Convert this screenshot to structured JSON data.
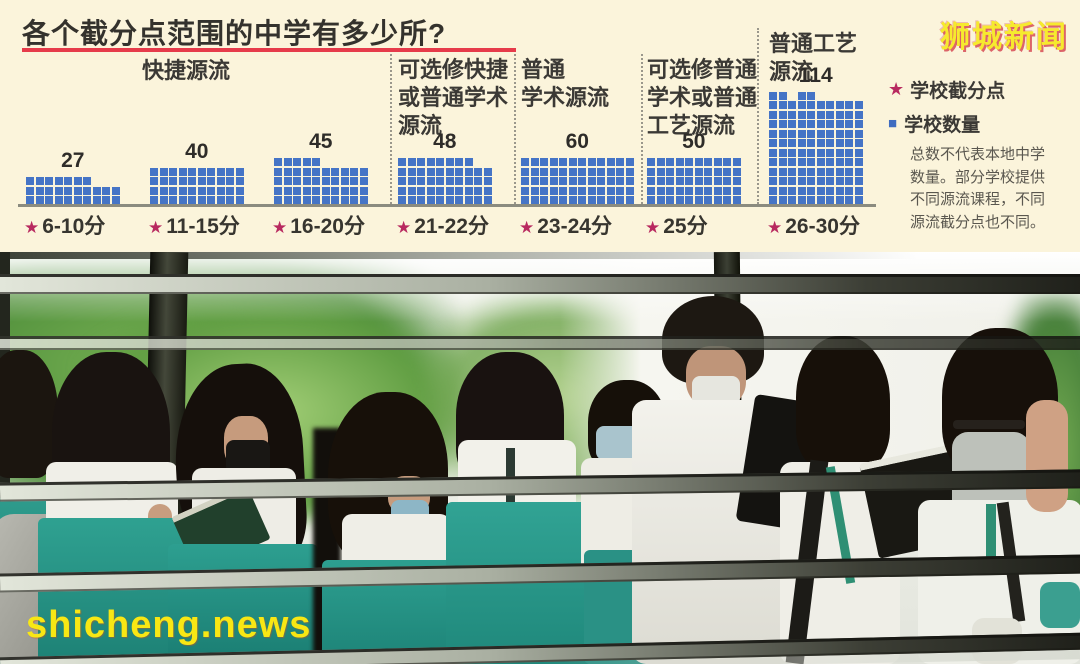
{
  "header": {
    "title": "各个截分点范围的中学有多少所?"
  },
  "logo": {
    "text": "狮城新闻"
  },
  "watermark": {
    "text": "shicheng.news"
  },
  "legend": {
    "cutoff_label": "学校截分点",
    "count_label": "学校数量",
    "note": "总数不代表本地中学\n数量。部分学校提供\n不同源流课程，不同\n源流截分点也不同。"
  },
  "chart_data": {
    "type": "waffle-pictograph",
    "title": "各个截分点范围的中学有多少所?",
    "categories": [
      "6-10分",
      "11-15分",
      "16-20分",
      "21-22分",
      "23-24分",
      "25分",
      "26-30分"
    ],
    "values": [
      27,
      40,
      45,
      48,
      60,
      50,
      114
    ],
    "square_color": "#4574c6",
    "star_color": "#b8295f",
    "streams": [
      {
        "label": "快捷源流",
        "span": [
          "6-10分",
          "11-15分",
          "16-20分"
        ]
      },
      {
        "label": "可选修快捷\n或普通学术\n源流",
        "span": [
          "21-22分"
        ]
      },
      {
        "label": "普通\n学术源流",
        "span": [
          "23-24分"
        ]
      },
      {
        "label": "可选修普通\n学术或普通\n工艺源流",
        "span": [
          "25分"
        ]
      },
      {
        "label": "普通工艺\n源流",
        "span": [
          "26-30分"
        ]
      }
    ],
    "groups": [
      {
        "category": "6-10分",
        "value": 27,
        "segments": [
          [
            7,
            3
          ],
          [
            3,
            2
          ]
        ]
      },
      {
        "category": "11-15分",
        "value": 40,
        "segments": [
          [
            10,
            4
          ]
        ]
      },
      {
        "category": "16-20分",
        "value": 45,
        "segments": [
          [
            5,
            5
          ],
          [
            5,
            4
          ]
        ]
      },
      {
        "category": "21-22分",
        "value": 48,
        "segments": [
          [
            8,
            5
          ],
          [
            2,
            4
          ]
        ]
      },
      {
        "category": "23-24分",
        "value": 60,
        "segments": [
          [
            12,
            5
          ]
        ]
      },
      {
        "category": "25分",
        "value": 50,
        "segments": [
          [
            10,
            5
          ]
        ]
      },
      {
        "category": "26-30分",
        "value": 114,
        "segments": [
          [
            2,
            12
          ],
          [
            1,
            11
          ],
          [
            2,
            12
          ],
          [
            5,
            11
          ]
        ]
      }
    ]
  }
}
